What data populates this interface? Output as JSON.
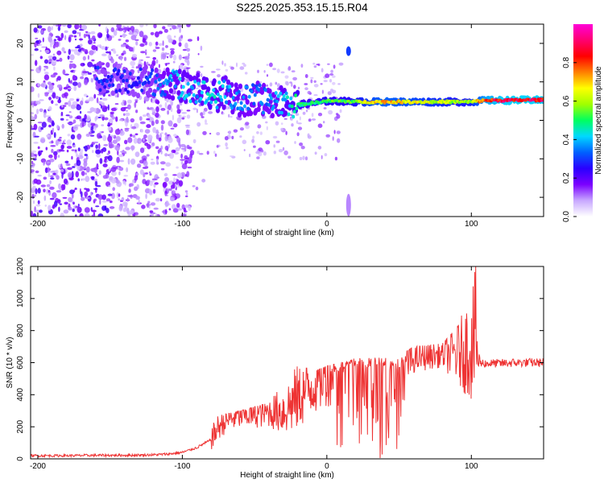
{
  "title": "S225.2025.353.15.15.R04",
  "chart_data": [
    {
      "type": "heatmap",
      "name": "spectrogram",
      "xlabel": "Height of straight line (km)",
      "ylabel": "Frequency (Hz)",
      "xlim": [
        -205,
        150
      ],
      "ylim": [
        -25,
        25
      ],
      "xticks": [
        -200,
        -100,
        0,
        100
      ],
      "yticks": [
        -20,
        -10,
        0,
        10,
        20
      ],
      "colorbar": {
        "label": "Normalized spectral amplitude",
        "range": [
          0,
          1
        ],
        "ticks": [
          0,
          0.2,
          0.4,
          0.6,
          0.8
        ],
        "colors": [
          "#ffffff",
          "#c8a8ff",
          "#7a00ff",
          "#2a00ff",
          "#0060ff",
          "#00d8ff",
          "#00ff60",
          "#a0ff00",
          "#ffff00",
          "#ff8000",
          "#ff0000",
          "#ff0070",
          "#ff00d8"
        ]
      },
      "ridge": [
        {
          "x": -160,
          "f": 11,
          "amp": 0.3
        },
        {
          "x": -140,
          "f": 10,
          "amp": 0.28
        },
        {
          "x": -120,
          "f": 10,
          "amp": 0.32
        },
        {
          "x": -110,
          "f": 10,
          "amp": 0.38
        },
        {
          "x": -100,
          "f": 9,
          "amp": 0.42
        },
        {
          "x": -90,
          "f": 8,
          "amp": 0.4
        },
        {
          "x": -80,
          "f": 6,
          "amp": 0.45
        },
        {
          "x": -70,
          "f": 7,
          "amp": 0.4
        },
        {
          "x": -60,
          "f": 5,
          "amp": 0.38
        },
        {
          "x": -50,
          "f": 6,
          "amp": 0.36
        },
        {
          "x": -40,
          "f": 5,
          "amp": 0.36
        },
        {
          "x": -30,
          "f": 5,
          "amp": 0.42
        },
        {
          "x": -20,
          "f": 4,
          "amp": 0.5
        },
        {
          "x": -10,
          "f": 4.5,
          "amp": 0.52
        },
        {
          "x": 0,
          "f": 5,
          "amp": 0.55
        },
        {
          "x": 10,
          "f": 5,
          "amp": 0.55
        },
        {
          "x": 20,
          "f": 4.8,
          "amp": 0.58
        },
        {
          "x": 30,
          "f": 4.8,
          "amp": 0.7
        },
        {
          "x": 40,
          "f": 4.8,
          "amp": 0.75
        },
        {
          "x": 50,
          "f": 4.8,
          "amp": 0.72
        },
        {
          "x": 60,
          "f": 4.8,
          "amp": 0.7
        },
        {
          "x": 70,
          "f": 4.8,
          "amp": 0.66
        },
        {
          "x": 80,
          "f": 4.8,
          "amp": 0.64
        },
        {
          "x": 90,
          "f": 4.8,
          "amp": 0.6
        },
        {
          "x": 100,
          "f": 4.8,
          "amp": 0.62
        },
        {
          "x": 110,
          "f": 5.2,
          "amp": 0.85
        },
        {
          "x": 120,
          "f": 5.2,
          "amp": 0.9
        },
        {
          "x": 130,
          "f": 5.2,
          "amp": 0.92
        },
        {
          "x": 140,
          "f": 5.3,
          "amp": 0.92
        },
        {
          "x": 150,
          "f": 5.3,
          "amp": 0.9
        }
      ],
      "features": [
        {
          "x": 15,
          "f": 18,
          "amp": 0.3,
          "label": "isolated blob"
        },
        {
          "x": 15,
          "f": -22,
          "amp": 0.1,
          "label": "faint streak"
        }
      ]
    },
    {
      "type": "line",
      "name": "snr",
      "xlabel": "Height of straight line (km)",
      "ylabel": "SNR (10 * v/v)",
      "xlim": [
        -205,
        150
      ],
      "ylim": [
        0,
        1200
      ],
      "xticks": [
        -200,
        -100,
        0,
        100
      ],
      "yticks": [
        0,
        200,
        400,
        600,
        800,
        1000,
        1200
      ],
      "color": "#ee3333",
      "x": [
        -200,
        -180,
        -160,
        -140,
        -120,
        -110,
        -100,
        -90,
        -80,
        -75,
        -70,
        -60,
        -50,
        -40,
        -30,
        -20,
        -10,
        0,
        10,
        20,
        30,
        40,
        50,
        60,
        70,
        80,
        90,
        95,
        100,
        103,
        105,
        110,
        120,
        130,
        140,
        150
      ],
      "y": [
        20,
        20,
        22,
        22,
        25,
        30,
        40,
        70,
        120,
        200,
        240,
        270,
        280,
        290,
        300,
        380,
        460,
        540,
        580,
        600,
        600,
        610,
        600,
        620,
        640,
        650,
        660,
        680,
        700,
        800,
        600,
        595,
        595,
        600,
        600,
        600
      ],
      "envelope": [
        {
          "x": -80,
          "lo": 60,
          "hi": 260
        },
        {
          "x": -60,
          "lo": 90,
          "hi": 300
        },
        {
          "x": -40,
          "lo": 120,
          "hi": 350
        },
        {
          "x": -22,
          "lo": 100,
          "hi": 620
        },
        {
          "x": -10,
          "lo": 60,
          "hi": 540
        },
        {
          "x": 0,
          "lo": 40,
          "hi": 580
        },
        {
          "x": 10,
          "lo": 20,
          "hi": 600
        },
        {
          "x": 20,
          "lo": 10,
          "hi": 620
        },
        {
          "x": 35,
          "lo": 0,
          "hi": 640
        },
        {
          "x": 50,
          "lo": 0,
          "hi": 640
        },
        {
          "x": 60,
          "lo": 480,
          "hi": 700
        },
        {
          "x": 80,
          "lo": 520,
          "hi": 720
        },
        {
          "x": 90,
          "lo": 320,
          "hi": 820
        },
        {
          "x": 100,
          "lo": 200,
          "hi": 1050
        },
        {
          "x": 103,
          "lo": 110,
          "hi": 1200
        },
        {
          "x": 106,
          "lo": 570,
          "hi": 640
        },
        {
          "x": 150,
          "lo": 570,
          "hi": 640
        }
      ]
    }
  ]
}
